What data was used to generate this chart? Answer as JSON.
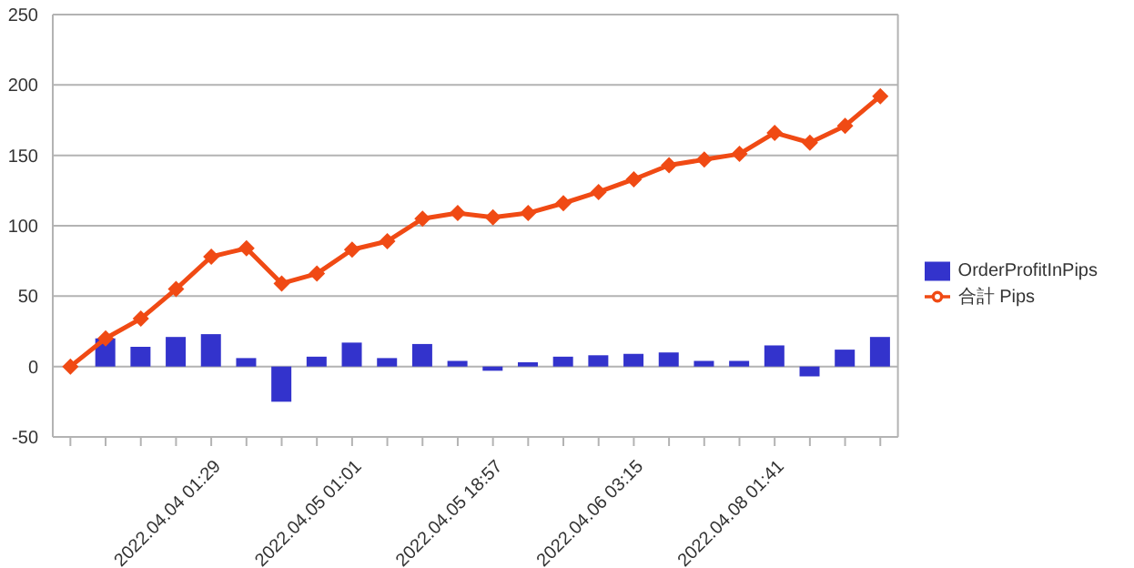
{
  "chart_data": {
    "type": "bar",
    "categories": [
      null,
      null,
      null,
      null,
      "2022.04.04 01:29",
      null,
      null,
      null,
      "2022.04.05 01:01",
      null,
      null,
      null,
      "2022.04.05 18:57",
      null,
      null,
      null,
      "2022.04.06 03:15",
      null,
      null,
      null,
      "2022.04.08 01:41",
      null,
      null,
      null
    ],
    "series": [
      {
        "name": "OrderProfitInPips",
        "color": "#3333cc",
        "values": [
          0,
          20,
          14,
          21,
          23,
          6,
          -25,
          7,
          17,
          6,
          16,
          4,
          -3,
          3,
          7,
          8,
          9,
          10,
          4,
          4,
          15,
          -7,
          12,
          21
        ]
      },
      {
        "name": "合計 Pips",
        "type": "line",
        "color": "#f04a14",
        "values": [
          0,
          20,
          34,
          55,
          78,
          84,
          59,
          66,
          83,
          89,
          105,
          109,
          106,
          109,
          116,
          124,
          133,
          143,
          147,
          151,
          166,
          159,
          171,
          192
        ]
      }
    ],
    "ylim": [
      -50,
      250
    ],
    "yticks": [
      -50,
      0,
      50,
      100,
      150,
      200,
      250
    ],
    "grid": "y",
    "legend": "right",
    "marker": "diamond"
  }
}
